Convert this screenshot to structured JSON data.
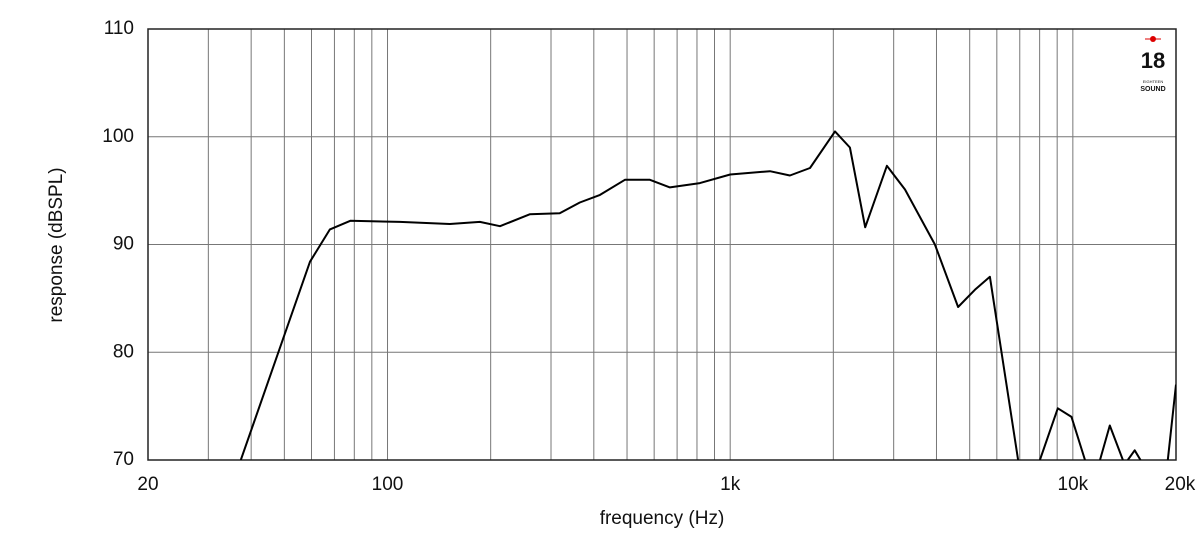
{
  "chart_data": {
    "type": "line",
    "x_label": "frequency (Hz)",
    "y_label": "response (dBSPL)",
    "xlog": true,
    "xlim": [
      20,
      20000
    ],
    "ylim": [
      70,
      110
    ],
    "xticks": [
      20,
      100,
      {
        "value": 1000,
        "label": "1k"
      },
      {
        "value": 10000,
        "label": "10k"
      },
      {
        "value": 20000,
        "label": "20k"
      }
    ],
    "xgrid_minor": [
      30,
      40,
      50,
      60,
      70,
      80,
      90,
      200,
      300,
      400,
      500,
      600,
      700,
      800,
      900,
      2000,
      3000,
      4000,
      5000,
      6000,
      7000,
      8000,
      9000
    ],
    "yticks": [
      70,
      80,
      90,
      100,
      110
    ],
    "grid": true,
    "logo": [
      "18",
      "EIGHTEEN",
      "SOUND"
    ],
    "series": [
      {
        "name": "response",
        "color": "#000000",
        "x": [
          37.3,
          49.5,
          59.4,
          67.9,
          77.9,
          108.7,
          152,
          186,
          213,
          260,
          318,
          364,
          417,
          493,
          583,
          667,
          816,
          1000,
          1307,
          1494,
          1710,
          2023,
          2236,
          2477,
          2866,
          3237,
          3957,
          4624,
          5179,
          5727,
          6920,
          7500,
          8015,
          9040,
          9910,
          10850,
          11400,
          12000,
          12820,
          14000,
          14200,
          14470,
          15150,
          15760,
          17000,
          18930,
          20000
        ],
        "values": [
          70,
          81.2,
          88.4,
          91.4,
          92.2,
          92.1,
          91.9,
          92.1,
          91.7,
          92.8,
          92.9,
          93.9,
          94.6,
          96.0,
          96.0,
          95.3,
          95.7,
          96.5,
          96.8,
          96.4,
          97.1,
          100.5,
          99.0,
          91.6,
          97.3,
          95.1,
          90.0,
          84.2,
          85.8,
          87.0,
          70,
          null,
          70,
          74.8,
          74.0,
          70,
          null,
          70,
          73.2,
          70,
          null,
          70,
          70.9,
          70,
          null,
          70,
          77.0
        ]
      }
    ]
  }
}
